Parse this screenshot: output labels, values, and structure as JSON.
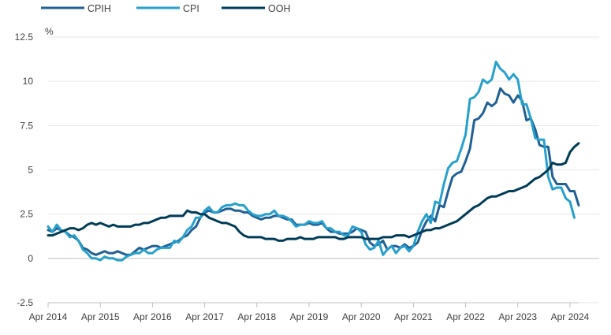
{
  "chart_data": {
    "type": "line",
    "title": "",
    "xlabel": "",
    "ylabel": "%",
    "ylim": [
      -2.5,
      12.5
    ],
    "yticks": [
      "12.5",
      "10",
      "7.5",
      "5",
      "2.5",
      "0",
      "-2.5"
    ],
    "xticks": [
      "Apr 2014",
      "Apr 2015",
      "Apr 2016",
      "Apr 2017",
      "Apr 2018",
      "Apr 2019",
      "Apr 2020",
      "Apr 2021",
      "Apr 2022",
      "Apr 2023",
      "Apr 2024"
    ],
    "grid": "horizontal",
    "legend_position": "top-left",
    "x_start": "Apr 2014",
    "x_end": "Apr 2024",
    "series": [
      {
        "name": "CPIH",
        "color": "#206095",
        "values": [
          1.6,
          1.5,
          1.7,
          1.6,
          1.5,
          1.3,
          1.2,
          1.0,
          0.6,
          0.5,
          0.3,
          0.2,
          0.3,
          0.4,
          0.3,
          0.3,
          0.4,
          0.3,
          0.2,
          0.2,
          0.4,
          0.6,
          0.5,
          0.6,
          0.7,
          0.7,
          0.6,
          0.7,
          0.8,
          0.9,
          1.0,
          1.2,
          1.3,
          1.6,
          1.8,
          2.3,
          2.6,
          2.7,
          2.6,
          2.6,
          2.7,
          2.8,
          2.8,
          2.7,
          2.7,
          2.6,
          2.6,
          2.4,
          2.3,
          2.2,
          2.3,
          2.3,
          2.4,
          2.4,
          2.3,
          2.2,
          2.2,
          1.9,
          1.9,
          1.9,
          2.0,
          1.9,
          1.9,
          2.0,
          1.7,
          1.5,
          1.5,
          1.4,
          1.4,
          1.4,
          1.5,
          1.7,
          1.6,
          1.5,
          0.9,
          0.7,
          0.8,
          1.0,
          0.5,
          0.7,
          0.7,
          0.6,
          0.8,
          0.6,
          0.7,
          0.9,
          1.6,
          2.1,
          2.4,
          2.1,
          3.0,
          2.9,
          3.8,
          4.6,
          4.8,
          4.9,
          5.5,
          6.2,
          7.8,
          7.9,
          8.2,
          8.8,
          8.6,
          8.8,
          9.6,
          9.3,
          9.2,
          8.8,
          9.2,
          8.9,
          7.8,
          7.9,
          7.3,
          6.4,
          6.3,
          6.3,
          4.6,
          4.2,
          4.2,
          4.2,
          3.8,
          3.8,
          3.0
        ]
      },
      {
        "name": "CPI",
        "color": "#27A0CC",
        "values": [
          1.8,
          1.5,
          1.9,
          1.6,
          1.5,
          1.2,
          1.3,
          1.0,
          0.5,
          0.3,
          0.0,
          0.0,
          -0.1,
          0.1,
          0.0,
          0.0,
          -0.1,
          -0.1,
          0.1,
          0.2,
          0.3,
          0.3,
          0.5,
          0.3,
          0.3,
          0.5,
          0.6,
          0.6,
          0.6,
          1.0,
          0.9,
          1.2,
          1.6,
          1.8,
          2.3,
          2.3,
          2.7,
          2.9,
          2.6,
          2.6,
          2.9,
          3.0,
          3.0,
          3.1,
          3.0,
          3.0,
          2.7,
          2.5,
          2.4,
          2.4,
          2.5,
          2.5,
          2.7,
          2.4,
          2.4,
          2.3,
          2.1,
          1.8,
          1.9,
          1.9,
          2.1,
          2.0,
          2.0,
          2.1,
          1.7,
          1.7,
          1.5,
          1.5,
          1.3,
          1.3,
          1.8,
          1.7,
          1.5,
          0.8,
          0.5,
          0.6,
          1.0,
          0.2,
          0.5,
          0.7,
          0.3,
          0.6,
          0.7,
          0.4,
          0.7,
          1.5,
          2.1,
          2.5,
          2.0,
          3.2,
          3.1,
          4.2,
          5.1,
          5.4,
          5.5,
          6.2,
          7.0,
          9.0,
          9.1,
          9.4,
          10.1,
          9.9,
          10.1,
          11.1,
          10.7,
          10.5,
          10.1,
          10.4,
          10.1,
          8.7,
          8.7,
          7.9,
          6.8,
          6.7,
          6.7,
          4.6,
          3.9,
          4.0,
          4.0,
          3.4,
          3.2,
          2.3
        ]
      },
      {
        "name": "OOH",
        "color": "#003C57",
        "values": [
          1.3,
          1.3,
          1.4,
          1.5,
          1.6,
          1.7,
          1.7,
          1.6,
          1.7,
          1.9,
          2.0,
          1.9,
          2.0,
          1.9,
          1.8,
          1.9,
          1.8,
          1.8,
          1.8,
          1.8,
          1.9,
          1.9,
          2.0,
          2.0,
          2.1,
          2.2,
          2.3,
          2.3,
          2.4,
          2.4,
          2.4,
          2.4,
          2.7,
          2.6,
          2.6,
          2.5,
          2.5,
          2.3,
          2.2,
          2.1,
          2.0,
          2.0,
          1.9,
          1.8,
          1.5,
          1.3,
          1.2,
          1.2,
          1.2,
          1.2,
          1.1,
          1.1,
          1.1,
          1.0,
          1.0,
          1.1,
          1.1,
          1.1,
          1.2,
          1.1,
          1.1,
          1.1,
          1.2,
          1.2,
          1.2,
          1.2,
          1.2,
          1.1,
          1.1,
          1.2,
          1.2,
          1.2,
          1.2,
          1.1,
          1.1,
          1.1,
          1.1,
          1.2,
          1.2,
          1.2,
          1.3,
          1.3,
          1.3,
          1.2,
          1.3,
          1.4,
          1.5,
          1.6,
          1.6,
          1.7,
          1.7,
          1.8,
          1.9,
          2.0,
          2.1,
          2.3,
          2.5,
          2.7,
          2.9,
          3.0,
          3.2,
          3.4,
          3.5,
          3.5,
          3.6,
          3.7,
          3.8,
          3.8,
          3.9,
          4.0,
          4.1,
          4.3,
          4.5,
          4.6,
          4.8,
          5.0,
          5.4,
          5.3,
          5.3,
          5.4,
          6.0,
          6.3,
          6.5
        ]
      }
    ]
  }
}
